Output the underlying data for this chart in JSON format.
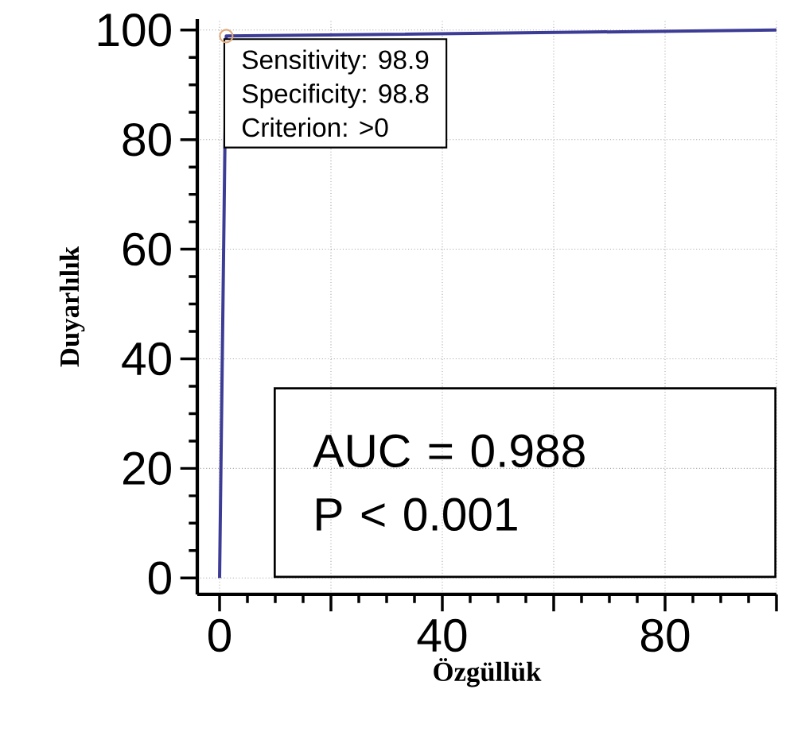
{
  "chart_data": {
    "type": "line",
    "xlabel": "Özgüllük",
    "ylabel": "Duyarlılık",
    "x": [
      0,
      1.2,
      100
    ],
    "series": [
      {
        "color": "#3c3c96",
        "values": [
          0,
          98.9,
          100
        ],
        "marker": "none",
        "line_style": "solid"
      },
      {
        "type": "scatter",
        "color": "#e0a878",
        "x": [
          1.2
        ],
        "values": [
          98.9
        ],
        "marker": "circle"
      }
    ],
    "xlim": [
      -4,
      100
    ],
    "ylim": [
      -3,
      102
    ],
    "xticks": [
      0,
      {
        "value": 20,
        "label": null
      },
      40,
      {
        "value": 60,
        "label": null
      },
      80,
      {
        "value": 100,
        "label": null
      }
    ],
    "yticks": [
      0,
      20,
      40,
      60,
      80,
      100
    ],
    "grid": true,
    "annotations": [
      "Sensitivity: 98.9",
      "Specificity: 98.8",
      "Criterion: >0",
      "AUC = 0.988",
      "P < 0.001"
    ]
  }
}
